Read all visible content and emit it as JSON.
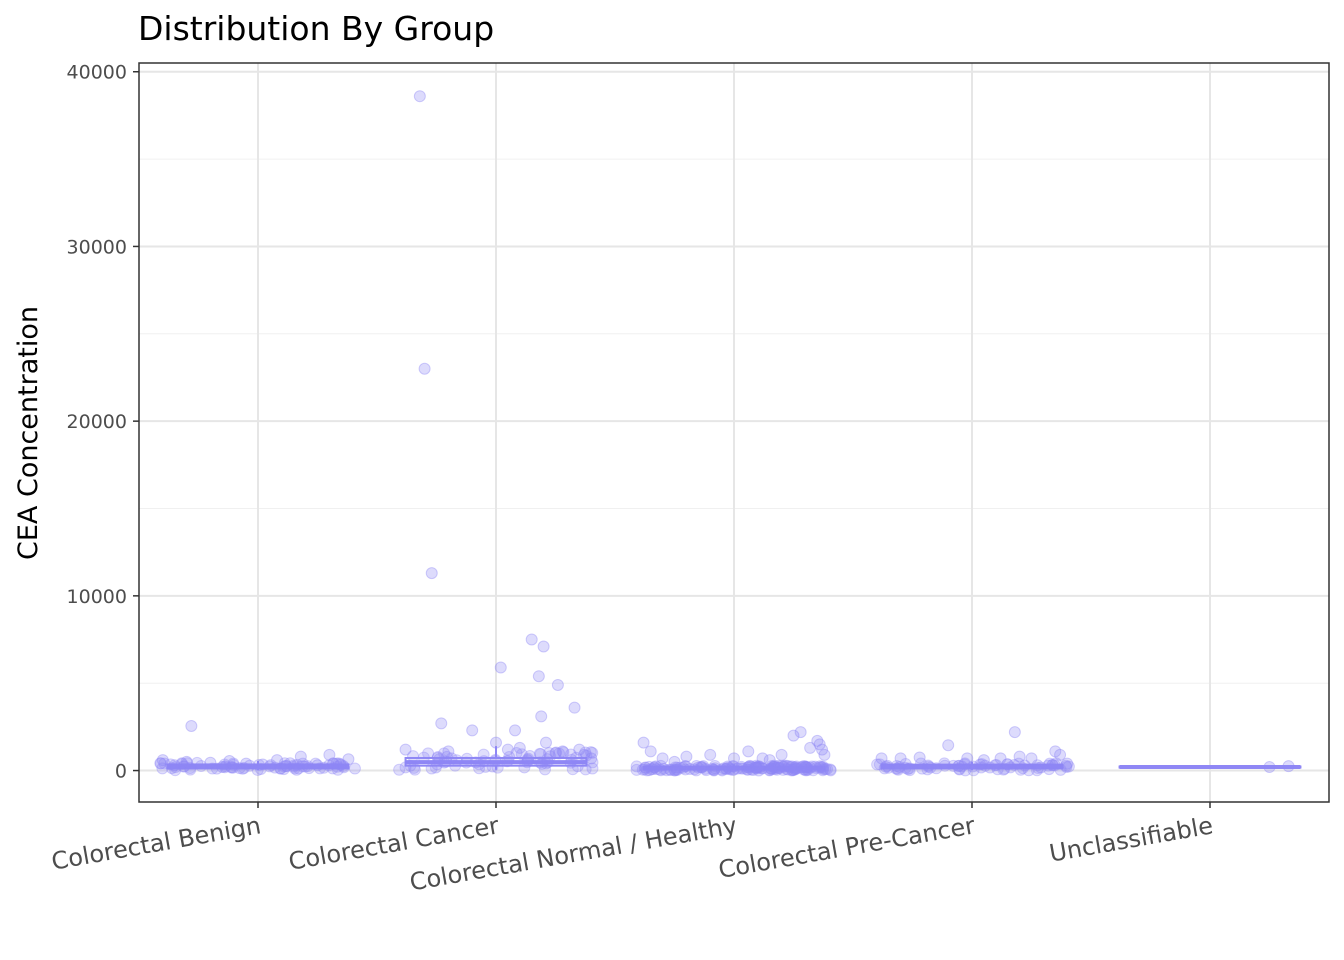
{
  "chart_data": {
    "type": "scatter",
    "title": "Distribution By Group",
    "xlabel": "",
    "ylabel": "CEA Concentration",
    "categories": [
      "Colorectal Benign",
      "Colorectal Cancer",
      "Colorectal Normal / Healthy",
      "Colorectal Pre-Cancer",
      "Unclassifiable"
    ],
    "ylim": [
      -1800,
      40500
    ],
    "yticks": [
      0,
      10000,
      20000,
      30000,
      40000
    ],
    "yticklabels": [
      "0",
      "10000",
      "20000",
      "30000",
      "40000"
    ],
    "grid": true,
    "legend": "none",
    "point_color": "#8f87f5",
    "boxes": [
      {
        "category": "Colorectal Benign",
        "q1": 120,
        "median": 220,
        "q3": 350,
        "whisker_low": 20,
        "whisker_high": 550
      },
      {
        "category": "Colorectal Cancer",
        "q1": 280,
        "median": 480,
        "q3": 720,
        "whisker_low": 40,
        "whisker_high": 1400
      },
      {
        "category": "Colorectal Normal / Healthy",
        "q1": 60,
        "median": 130,
        "q3": 220,
        "whisker_low": 0,
        "whisker_high": 350
      },
      {
        "category": "Colorectal Pre-Cancer",
        "q1": 120,
        "median": 220,
        "q3": 340,
        "whisker_low": 10,
        "whisker_high": 500
      },
      {
        "category": "Unclassifiable",
        "q1": 180,
        "median": 200,
        "q3": 230,
        "whisker_low": 170,
        "whisker_high": 250
      }
    ],
    "series": [
      {
        "category": "Colorectal Benign",
        "x": [
          -0.4,
          -0.3,
          -0.28,
          -0.2,
          -0.12,
          -0.05,
          0.02,
          0.08,
          0.18,
          0.25,
          0.3,
          0.38,
          -0.35,
          -0.15,
          0.12,
          0.33
        ],
        "y": [
          600,
          500,
          2550,
          450,
          550,
          400,
          350,
          600,
          800,
          300,
          900,
          650,
          300,
          200,
          250,
          400
        ]
      },
      {
        "category": "Colorectal Cancer",
        "x": [
          -0.32,
          -0.3,
          -0.27,
          -0.23,
          -0.2,
          0.02,
          0.05,
          0.08,
          0.1,
          0.15,
          0.18,
          0.19,
          0.2,
          0.21,
          0.26,
          0.28,
          0.33,
          0.35,
          0.37,
          0.4,
          -0.38,
          -0.1,
          0.0,
          0.25
        ],
        "y": [
          38600,
          23000,
          11300,
          2700,
          1100,
          5900,
          1200,
          2300,
          1300,
          7500,
          5400,
          3100,
          7100,
          1600,
          4900,
          1100,
          3600,
          1200,
          900,
          700,
          1200,
          2300,
          1600,
          1000
        ]
      },
      {
        "category": "Colorectal Normal / Healthy",
        "x": [
          -0.38,
          -0.35,
          -0.3,
          -0.2,
          -0.1,
          0.0,
          0.06,
          0.12,
          0.2,
          0.25,
          0.28,
          0.32,
          0.35,
          0.36,
          0.37,
          0.38,
          -0.25,
          0.15
        ],
        "y": [
          1600,
          1100,
          700,
          800,
          900,
          700,
          1100,
          700,
          900,
          2000,
          2200,
          1300,
          1700,
          1500,
          1200,
          900,
          500,
          600
        ]
      },
      {
        "category": "Colorectal Pre-Cancer",
        "x": [
          -0.38,
          -0.3,
          -0.22,
          -0.1,
          -0.02,
          0.05,
          0.12,
          0.18,
          0.2,
          0.25,
          0.35,
          0.37,
          0.4
        ],
        "y": [
          700,
          700,
          750,
          1450,
          700,
          600,
          700,
          2200,
          800,
          700,
          1100,
          900,
          400
        ]
      },
      {
        "category": "Unclassifiable",
        "x": [
          0.25,
          0.33
        ],
        "y": [
          200,
          250
        ]
      }
    ]
  }
}
